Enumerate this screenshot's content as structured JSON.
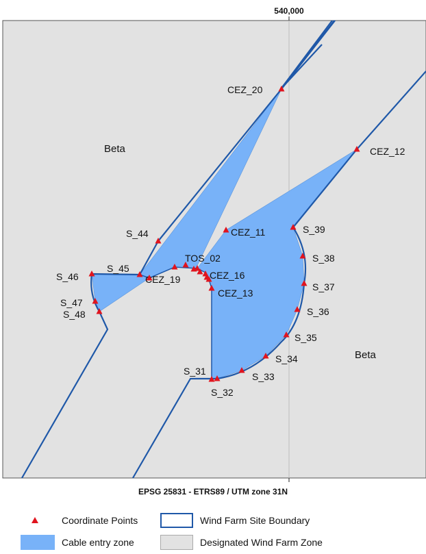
{
  "map": {
    "grid_tick_label": "540,000",
    "crs_label": "EPSG 25831 - ETRS89 / UTM zone 31N",
    "zone_labels": [
      "Beta",
      "Beta"
    ],
    "colors": {
      "background": "#e2e2e2",
      "cable_zone": "#78b2f8",
      "boundary": "#1f58a8",
      "points": "#e0141e"
    },
    "points": [
      "CEZ_20",
      "CEZ_12",
      "CEZ_11",
      "S_39",
      "S_38",
      "S_37",
      "S_36",
      "S_35",
      "S_34",
      "S_33",
      "S_32",
      "S_31",
      "CEZ_13",
      "CEZ_16",
      "TOS_02",
      "CEZ_19",
      "S_44",
      "S_45",
      "S_46",
      "S_47",
      "S_48"
    ]
  },
  "legend": {
    "coordinate_points": "Coordinate Points",
    "cable_entry_zone": "Cable entry zone",
    "wind_farm_site_boundary": "Wind Farm Site Boundary",
    "designated_wind_farm_zone": "Designated Wind Farm Zone"
  }
}
